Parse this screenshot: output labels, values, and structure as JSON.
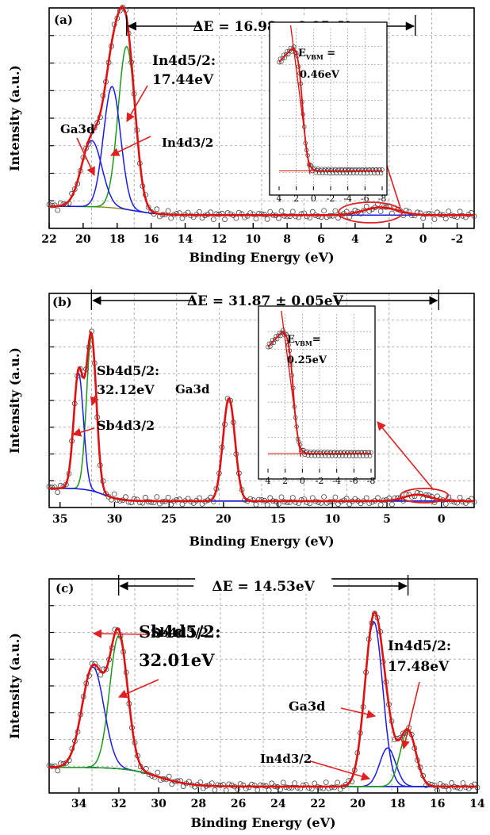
{
  "chart_data": [
    {
      "type": "line",
      "panel_label": "(a)",
      "xlabel": "Binding Energy (eV)",
      "ylabel": "Intensity (a.u.)",
      "xlim": [
        22,
        -3
      ],
      "xticks": [
        22,
        20,
        18,
        16,
        14,
        12,
        10,
        8,
        6,
        4,
        2,
        0,
        -2
      ],
      "delta_e": {
        "text": "ΔE = 16.98 ± 0.05eV",
        "from": 17.44,
        "to": 0.46
      },
      "peaks": [
        {
          "name": "In4d5/2",
          "center": 17.44,
          "height": 0.74,
          "sigma": 0.5,
          "color": "#1a9b1a"
        },
        {
          "name": "In4d3/2",
          "center": 18.3,
          "height": 0.55,
          "sigma": 0.5,
          "color": "#1a1aee"
        },
        {
          "name": "Ga3d",
          "center": 19.5,
          "height": 0.3,
          "sigma": 0.6,
          "color": "#1a1aee"
        }
      ],
      "baseline": {
        "low": 0.06,
        "step": 0.04,
        "step_at": 17.0
      },
      "secondary_peak": {
        "center": 2.5,
        "height": 0.035,
        "sigma": 1.0
      },
      "annotations": [
        {
          "text": "In4d5/2:",
          "size": 17
        },
        {
          "text": "17.44eV",
          "size": 17
        },
        {
          "text": "In4d3/2",
          "size": 15
        },
        {
          "text": "Ga3d",
          "size": 15
        }
      ],
      "inset": {
        "xlim": [
          4,
          -8
        ],
        "xticks": [
          4,
          2,
          0,
          -2,
          -4,
          -6,
          -8
        ],
        "e_label": "E",
        "e_sub": "VBM",
        "e_suffix": " =",
        "value": "0.46eV",
        "vbm": 0.46
      }
    },
    {
      "type": "line",
      "panel_label": "(b)",
      "xlabel": "Binding Energy (eV)",
      "ylabel": "Intensity (a.u.)",
      "xlim": [
        36,
        -3
      ],
      "xticks": [
        35,
        30,
        25,
        20,
        15,
        10,
        5,
        0
      ],
      "delta_e": {
        "text": "ΔE = 31.87 ± 0.05eV",
        "from": 32.12,
        "to": 0.25
      },
      "peaks": [
        {
          "name": "Sb4d5/2",
          "center": 32.12,
          "height": 0.72,
          "sigma": 0.45,
          "color": "#1a9b1a"
        },
        {
          "name": "Sb4d3/2",
          "center": 33.3,
          "height": 0.54,
          "sigma": 0.45,
          "color": "#1a1aee"
        },
        {
          "name": "Ga3d",
          "center": 19.5,
          "height": 0.48,
          "sigma": 0.55,
          "color": "#1a1aee"
        }
      ],
      "baseline": {
        "low": 0.03,
        "step": 0.06,
        "step_at": 31.0
      },
      "secondary_peak": {
        "center": 2.2,
        "height": 0.03,
        "sigma": 1.2
      },
      "annotations": [
        {
          "text": "Sb4d5/2:",
          "size": 16
        },
        {
          "text": "32.12eV",
          "size": 16
        },
        {
          "text": "Sb4d3/2",
          "size": 16
        },
        {
          "text": "Ga3d",
          "size": 15
        }
      ],
      "inset": {
        "xlim": [
          4,
          -8
        ],
        "xticks": [
          4,
          2,
          0,
          -2,
          -4,
          -6,
          -8
        ],
        "e_label": "E",
        "e_sub": "VBM",
        "e_suffix": "=",
        "value": "0.25eV",
        "vbm": 0.25
      }
    },
    {
      "type": "line",
      "panel_label": "(c)",
      "xlabel": "Binding Energy (eV)",
      "ylabel": "Intensity (a.u.)",
      "xlim": [
        35.5,
        14
      ],
      "xticks": [
        34,
        32,
        30,
        28,
        26,
        24,
        22,
        20,
        18,
        16,
        14
      ],
      "delta_e": {
        "text": "ΔE = 14.53eV",
        "from": 32.01,
        "to": 17.48
      },
      "peaks": [
        {
          "name": "Sb4d5/2",
          "center": 32.01,
          "height": 0.62,
          "sigma": 0.45,
          "color": "#1a9b1a"
        },
        {
          "name": "Sb4d3/2",
          "center": 33.3,
          "height": 0.47,
          "sigma": 0.55,
          "color": "#1a1aee"
        },
        {
          "name": "Ga3d",
          "center": 19.2,
          "height": 0.77,
          "sigma": 0.45,
          "color": "#1a1aee"
        },
        {
          "name": "In4d3/2",
          "center": 18.5,
          "height": 0.18,
          "sigma": 0.4,
          "color": "#1a1aee"
        },
        {
          "name": "In4d5/2",
          "center": 17.48,
          "height": 0.26,
          "sigma": 0.4,
          "color": "#1a9b1a"
        }
      ],
      "baseline": {
        "low": 0.03,
        "step": 0.09,
        "step_at": 30.0
      },
      "secondary_peak": null,
      "annotations": [
        {
          "text": "Sb4d5/2:",
          "size": 21
        },
        {
          "text": "32.01eV",
          "size": 21
        },
        {
          "text": "Sb4d3/2",
          "size": 16
        },
        {
          "text": "Ga3d",
          "size": 16
        },
        {
          "text": "In4d3/2",
          "size": 15
        },
        {
          "text": "In4d5/2:",
          "size": 17
        },
        {
          "text": "17.48eV",
          "size": 17
        }
      ],
      "inset": null
    }
  ]
}
